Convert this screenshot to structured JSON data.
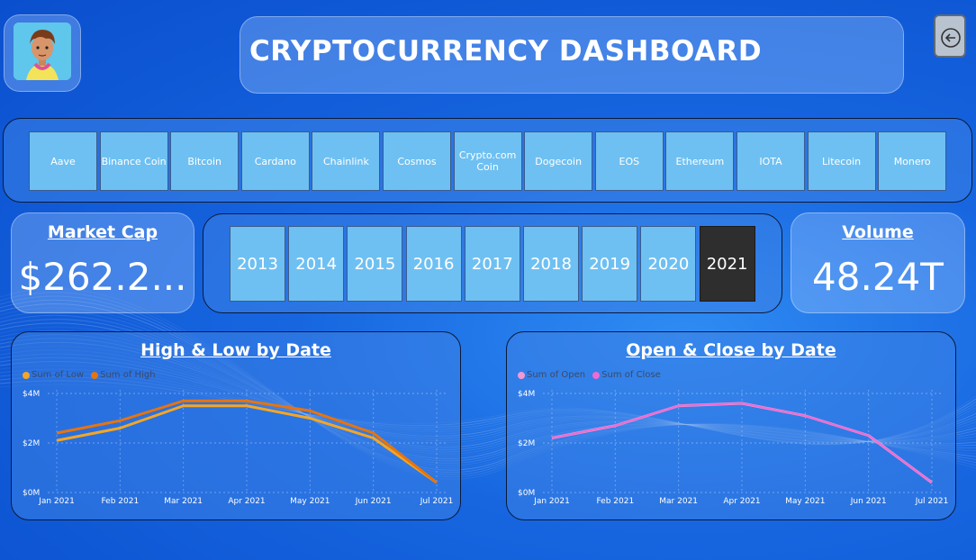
{
  "header": {
    "title": "CRYPTOCURRENCY DASHBOARD"
  },
  "icons": {
    "back": "back-arrow-icon",
    "avatar": "user-avatar"
  },
  "coins": [
    "Aave",
    "Binance Coin",
    "Bitcoin",
    "Cardano",
    "Chainlink",
    "Cosmos",
    "Crypto.com Coin",
    "Dogecoin",
    "EOS",
    "Ethereum",
    "IOTA",
    "Litecoin",
    "Monero"
  ],
  "years": [
    "2013",
    "2014",
    "2015",
    "2016",
    "2017",
    "2018",
    "2019",
    "2020",
    "2021"
  ],
  "selected_year": "2021",
  "kpis": {
    "market_cap": {
      "label": "Market Cap",
      "value": "$262.2..."
    },
    "volume": {
      "label": "Volume",
      "value": "48.24T"
    }
  },
  "colors": {
    "low": "#f5a623",
    "high": "#e8740c",
    "open": "#f19ad3",
    "close": "#f06ad2",
    "selected_year": "#2e2e2e",
    "tile": "#6ec0f2"
  },
  "chart_data": [
    {
      "type": "line",
      "title": "High & Low by Date",
      "categories": [
        "Jan 2021",
        "Feb 2021",
        "Mar 2021",
        "Apr 2021",
        "May 2021",
        "Jun 2021",
        "Jul 2021"
      ],
      "series": [
        {
          "name": "Sum of Low",
          "values": [
            2.1,
            2.6,
            3.5,
            3.5,
            3.0,
            2.2,
            0.4
          ]
        },
        {
          "name": "Sum of High",
          "values": [
            2.4,
            2.9,
            3.7,
            3.7,
            3.3,
            2.4,
            0.4
          ]
        }
      ],
      "yticks": [
        "$0M",
        "$2M",
        "$4M"
      ],
      "ylim": [
        0,
        4
      ],
      "legend": "top-left"
    },
    {
      "type": "line",
      "title": "Open & Close by Date",
      "categories": [
        "Jan 2021",
        "Feb 2021",
        "Mar 2021",
        "Apr 2021",
        "May 2021",
        "Jun 2021",
        "Jul 2021"
      ],
      "series": [
        {
          "name": "Sum of Open",
          "values": [
            2.2,
            2.7,
            3.5,
            3.6,
            3.1,
            2.3,
            0.4
          ]
        },
        {
          "name": "Sum of Close",
          "values": [
            2.2,
            2.7,
            3.5,
            3.6,
            3.1,
            2.3,
            0.4
          ]
        }
      ],
      "yticks": [
        "$0M",
        "$2M",
        "$4M"
      ],
      "ylim": [
        0,
        4
      ],
      "legend": "top-left"
    }
  ]
}
